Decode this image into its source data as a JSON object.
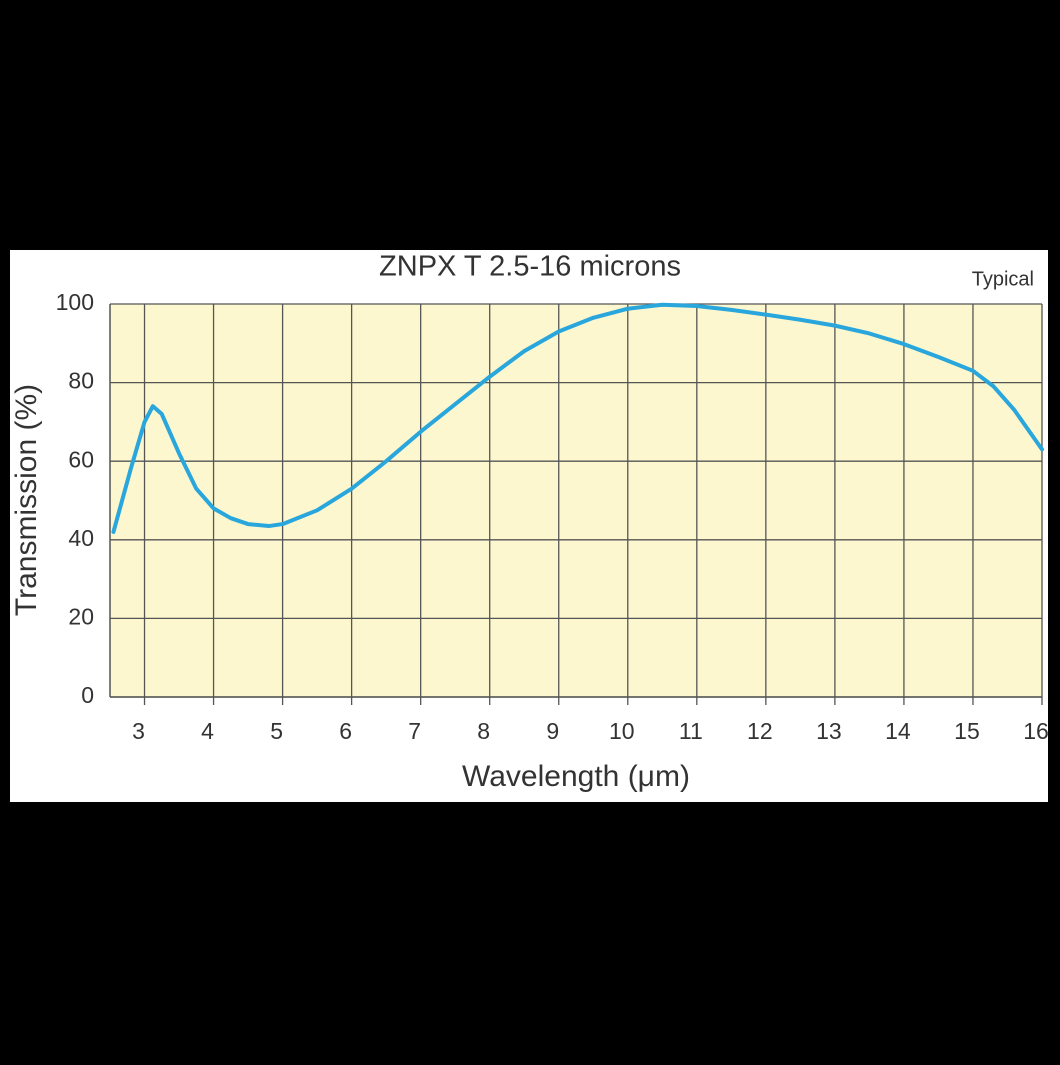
{
  "chart_data": {
    "type": "line",
    "title": "ZNPX T 2.5-16 microns",
    "annotation": "Typical",
    "x_label": "Wavelength (μm)",
    "y_label": "Transmission (%)",
    "x": [
      2.55,
      2.8,
      3.0,
      3.12,
      3.25,
      3.5,
      3.75,
      4.0,
      4.25,
      4.5,
      4.8,
      5.0,
      5.5,
      6.0,
      6.5,
      7.0,
      7.5,
      8.0,
      8.5,
      9.0,
      9.5,
      10.0,
      10.5,
      11.0,
      11.5,
      12.0,
      12.5,
      13.0,
      13.5,
      14.0,
      14.5,
      15.0,
      15.3,
      15.6,
      16.0
    ],
    "series": [
      {
        "name": "Transmission",
        "color": "#29a6dc",
        "values": [
          42,
          58,
          70,
          74,
          72,
          62,
          53,
          48,
          45.5,
          44,
          43.5,
          44,
          47.5,
          53,
          60,
          67.5,
          74.5,
          81.5,
          88,
          93,
          96.5,
          98.8,
          99.8,
          99.5,
          98.5,
          97.3,
          96,
          94.5,
          92.5,
          89.8,
          86.5,
          83,
          79,
          73,
          63
        ]
      }
    ],
    "xlim": [
      2.5,
      16
    ],
    "xticks": [
      3,
      4,
      5,
      6,
      7,
      8,
      9,
      10,
      11,
      12,
      13,
      14,
      15,
      16
    ],
    "ylim": [
      0,
      100
    ],
    "yticks": [
      0,
      20,
      40,
      60,
      80,
      100
    ],
    "grid": true,
    "plot_background": "#fcf7cf"
  }
}
